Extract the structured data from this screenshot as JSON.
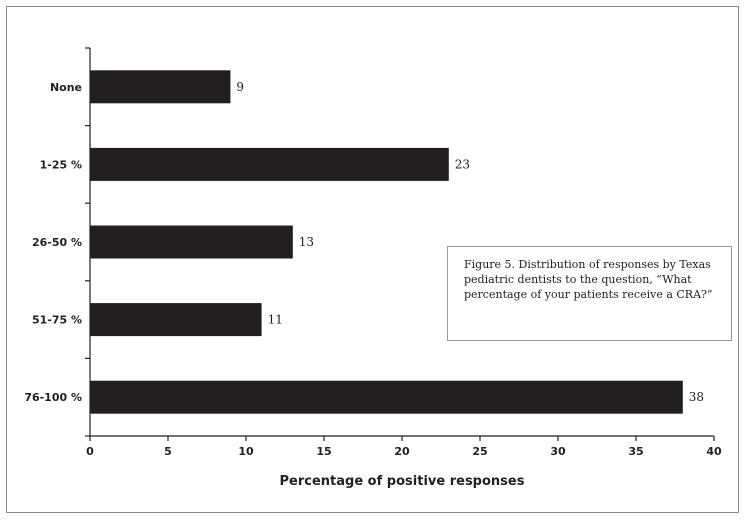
{
  "chart_data": {
    "type": "bar",
    "orientation": "horizontal",
    "categories": [
      "None",
      "1-25 %",
      "26-50 %",
      "51-75 %",
      "76-100 %"
    ],
    "values": [
      9,
      23,
      13,
      11,
      38
    ],
    "value_labels": [
      "9",
      "23",
      "13",
      "11",
      "38"
    ],
    "xlabel": "Percentage of positive responses",
    "xlim": [
      0,
      40
    ],
    "xticks": [
      0,
      5,
      10,
      15,
      20,
      25,
      30,
      35,
      40
    ],
    "xtick_labels": [
      "0",
      "5",
      "10",
      "15",
      "20",
      "25",
      "30",
      "35",
      "40"
    ],
    "bar_color": "#231f20",
    "grid": false
  },
  "caption": {
    "text": "Figure 5. Distribution of responses by Texas pediatric dentists to the question, “What percentage of your patients receive a CRA?”"
  }
}
